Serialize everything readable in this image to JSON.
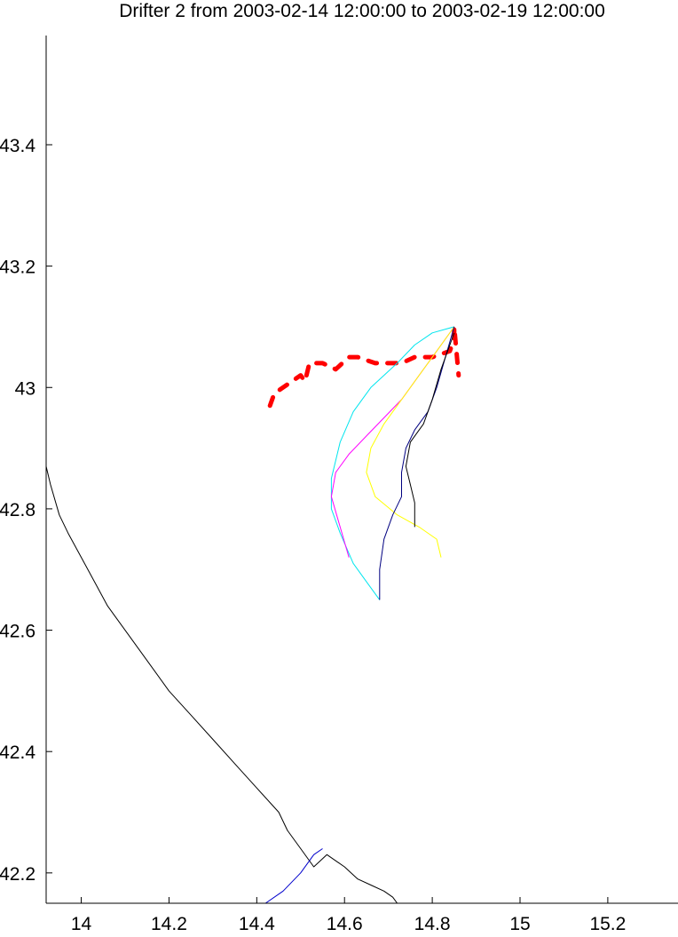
{
  "chart_data": {
    "type": "line",
    "title": "Drifter 2 from 2003-02-14 12:00:00 to 2003-02-19 12:00:00",
    "xlabel": "",
    "ylabel": "",
    "xlim": [
      13.92,
      15.36
    ],
    "ylim": [
      42.15,
      43.58
    ],
    "grid": false,
    "x_ticks": [
      14,
      14.2,
      14.4,
      14.6,
      14.8,
      15,
      15.2
    ],
    "x_tick_labels": [
      "14",
      "14.2",
      "14.4",
      "14.6",
      "14.8",
      "15",
      "15.2"
    ],
    "y_ticks": [
      42.2,
      42.4,
      42.6,
      42.8,
      43,
      43.2,
      43.4
    ],
    "y_tick_labels": [
      "42.2",
      "42.4",
      "42.6",
      "42.8",
      "43",
      "43.2",
      "43.4"
    ],
    "series": [
      {
        "color": "#000000",
        "values": [
          [
            13.92,
            42.87
          ],
          [
            13.93,
            42.84
          ],
          [
            13.95,
            42.79
          ],
          [
            13.97,
            42.76
          ],
          [
            14.0,
            42.72
          ],
          [
            14.03,
            42.68
          ],
          [
            14.06,
            42.64
          ],
          [
            14.1,
            42.6
          ],
          [
            14.15,
            42.55
          ],
          [
            14.2,
            42.5
          ],
          [
            14.25,
            42.46
          ],
          [
            14.3,
            42.42
          ],
          [
            14.35,
            42.38
          ],
          [
            14.4,
            42.34
          ],
          [
            14.45,
            42.3
          ],
          [
            14.47,
            42.27
          ],
          [
            14.5,
            42.24
          ],
          [
            14.53,
            42.21
          ],
          [
            14.56,
            42.23
          ],
          [
            14.6,
            42.21
          ],
          [
            14.63,
            42.19
          ],
          [
            14.66,
            42.18
          ],
          [
            14.69,
            42.17
          ],
          [
            14.71,
            42.16
          ],
          [
            14.72,
            42.15
          ]
        ]
      },
      {
        "color": "#0000cc",
        "values": [
          [
            14.42,
            42.15
          ],
          [
            14.46,
            42.17
          ],
          [
            14.5,
            42.2
          ],
          [
            14.53,
            42.23
          ],
          [
            14.55,
            42.24
          ]
        ]
      },
      {
        "color": "#ff0000",
        "style": "marker",
        "values": [
          [
            14.43,
            42.97
          ],
          [
            14.44,
            42.99
          ],
          [
            14.48,
            43.01
          ],
          [
            14.5,
            43.02
          ],
          [
            14.51,
            43.01
          ],
          [
            14.52,
            43.04
          ],
          [
            14.55,
            43.04
          ],
          [
            14.58,
            43.03
          ],
          [
            14.61,
            43.05
          ],
          [
            14.63,
            43.05
          ],
          [
            14.67,
            43.04
          ],
          [
            14.7,
            43.04
          ],
          [
            14.73,
            43.04
          ],
          [
            14.76,
            43.05
          ],
          [
            14.8,
            43.05
          ],
          [
            14.84,
            43.06
          ],
          [
            14.85,
            43.08
          ],
          [
            14.85,
            43.1
          ],
          [
            14.86,
            43.02
          ]
        ]
      },
      {
        "color": "#00e5ee",
        "values": [
          [
            14.85,
            43.1
          ],
          [
            14.8,
            43.09
          ],
          [
            14.76,
            43.07
          ],
          [
            14.72,
            43.04
          ],
          [
            14.66,
            43.0
          ],
          [
            14.62,
            42.96
          ],
          [
            14.59,
            42.91
          ],
          [
            14.57,
            42.85
          ],
          [
            14.57,
            42.8
          ],
          [
            14.59,
            42.76
          ],
          [
            14.62,
            42.71
          ],
          [
            14.65,
            42.68
          ],
          [
            14.68,
            42.65
          ]
        ]
      },
      {
        "color": "#ff00ff",
        "values": [
          [
            14.85,
            43.1
          ],
          [
            14.81,
            43.06
          ],
          [
            14.77,
            43.02
          ],
          [
            14.73,
            42.98
          ],
          [
            14.69,
            42.95
          ],
          [
            14.65,
            42.92
          ],
          [
            14.61,
            42.89
          ],
          [
            14.58,
            42.86
          ],
          [
            14.57,
            42.82
          ],
          [
            14.59,
            42.77
          ],
          [
            14.61,
            42.72
          ]
        ]
      },
      {
        "color": "#ffff00",
        "values": [
          [
            14.85,
            43.1
          ],
          [
            14.81,
            43.06
          ],
          [
            14.77,
            43.02
          ],
          [
            14.73,
            42.98
          ],
          [
            14.69,
            42.94
          ],
          [
            14.66,
            42.9
          ],
          [
            14.65,
            42.86
          ],
          [
            14.67,
            42.82
          ],
          [
            14.72,
            42.79
          ],
          [
            14.77,
            42.77
          ],
          [
            14.81,
            42.75
          ],
          [
            14.82,
            42.72
          ]
        ]
      },
      {
        "color": "#000080",
        "values": [
          [
            14.85,
            43.1
          ],
          [
            14.83,
            43.05
          ],
          [
            14.81,
            43.0
          ],
          [
            14.79,
            42.96
          ],
          [
            14.76,
            42.93
          ],
          [
            14.74,
            42.9
          ],
          [
            14.73,
            42.86
          ],
          [
            14.73,
            42.82
          ],
          [
            14.71,
            42.79
          ],
          [
            14.69,
            42.75
          ],
          [
            14.68,
            42.7
          ],
          [
            14.68,
            42.65
          ]
        ]
      },
      {
        "color": "#000000",
        "values": [
          [
            14.85,
            43.09
          ],
          [
            14.82,
            43.03
          ],
          [
            14.8,
            42.98
          ],
          [
            14.78,
            42.94
          ],
          [
            14.75,
            42.91
          ],
          [
            14.74,
            42.87
          ],
          [
            14.75,
            42.84
          ],
          [
            14.76,
            42.81
          ],
          [
            14.76,
            42.77
          ]
        ]
      }
    ]
  }
}
